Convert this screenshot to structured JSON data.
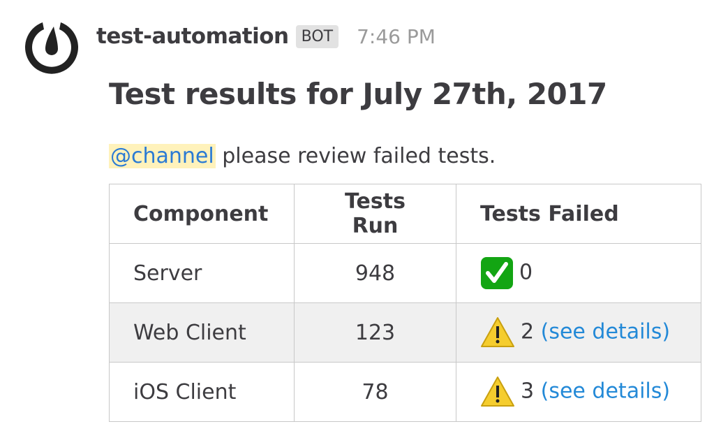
{
  "post": {
    "username": "test-automation",
    "bot_badge": "BOT",
    "time": "7:46 PM",
    "avatar_icon": "mattermost-logo-icon"
  },
  "message": {
    "title": "Test results for July 27th, 2017",
    "mention": "@channel",
    "text": " please review failed tests."
  },
  "table": {
    "headers": [
      "Component",
      "Tests Run",
      "Tests Failed"
    ],
    "rows": [
      {
        "component": "Server",
        "run": "948",
        "status_icon": "check-mark-icon",
        "failed": "0",
        "link": ""
      },
      {
        "component": "Web Client",
        "run": "123",
        "status_icon": "warning-icon",
        "failed": "2",
        "link": "(see details)"
      },
      {
        "component": "iOS Client",
        "run": "78",
        "status_icon": "warning-icon",
        "failed": "3",
        "link": "(see details)"
      }
    ]
  },
  "colors": {
    "link": "#2389d7",
    "mention_bg": "#fff2bb",
    "alt_row": "#f0f0f0"
  }
}
